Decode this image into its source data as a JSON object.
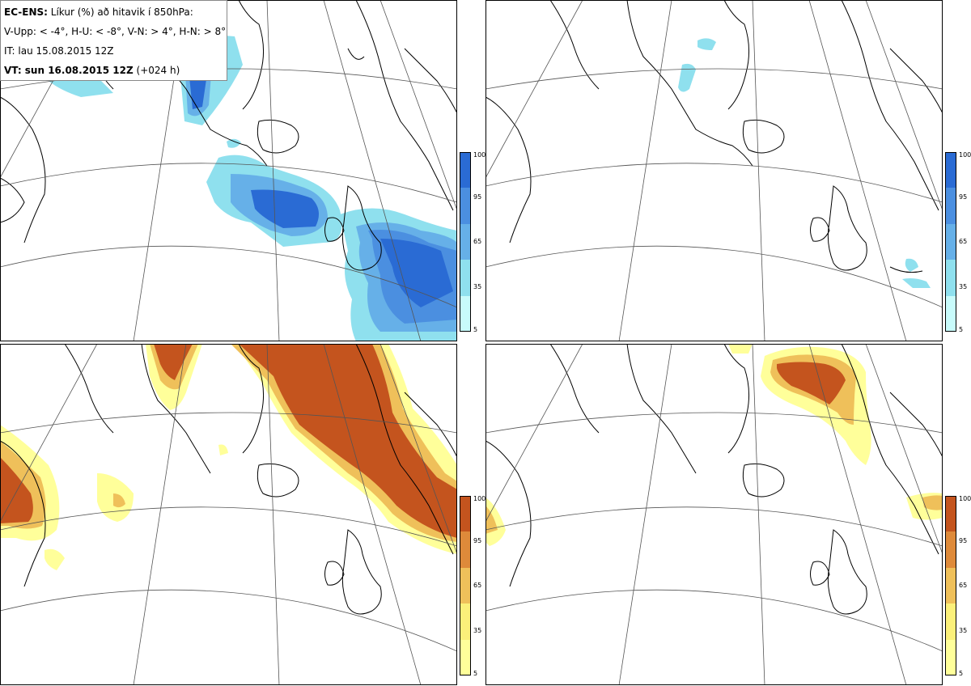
{
  "info": {
    "model": "EC-ENS:",
    "parameter": "Líkur (%) að hitavik í 850hPa:",
    "thresholds": "V-Upp: < -4°, H-U: < -8°, V-N: > 4°, H-N: > 8°",
    "issue_time": "IT: lau 15.08.2015 12Z",
    "valid_label": "VT: sun 16.08.2015 12Z",
    "lead": "(+024 h)"
  },
  "colorbars": {
    "cold": {
      "ticks": [
        "100",
        "95",
        "65",
        "35",
        "5"
      ],
      "colors": [
        "#2a6bd4",
        "#4b8fe0",
        "#66b0e8",
        "#8fe0ee",
        "#c8fbfb"
      ]
    },
    "warm": {
      "ticks": [
        "100",
        "95",
        "65",
        "35",
        "5"
      ],
      "colors": [
        "#c4541e",
        "#de8a3a",
        "#efc05a",
        "#fbf07a",
        "#ffff9a"
      ]
    }
  },
  "panels": [
    {
      "id": "cold-4",
      "scheme": "cold"
    },
    {
      "id": "cold-8",
      "scheme": "cold"
    },
    {
      "id": "warm-4",
      "scheme": "warm"
    },
    {
      "id": "warm-8",
      "scheme": "warm"
    }
  ]
}
